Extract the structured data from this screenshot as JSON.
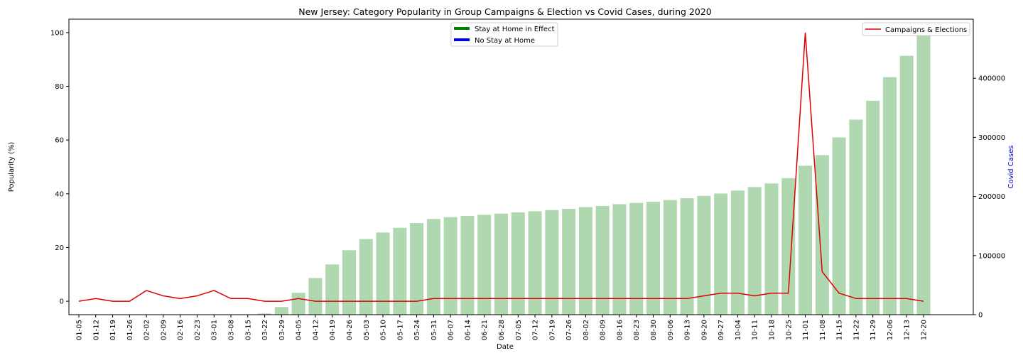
{
  "chart_data": {
    "type": "bar+line",
    "title": "New Jersey: Category Popularity in Group Campaigns & Election vs Covid Cases, during 2020",
    "xlabel": "Date",
    "ylabel_left": "Popularity (%)",
    "ylabel_right": "Covid Cases",
    "ylim_left": [
      -5,
      105
    ],
    "ylim_right": [
      0,
      500000
    ],
    "yticks_left": [
      "0",
      "20",
      "40",
      "60",
      "80",
      "100"
    ],
    "yticks_right": [
      "0",
      "100000",
      "200000",
      "300000",
      "400000"
    ],
    "grid": false,
    "categories": [
      "01-05",
      "01-12",
      "01-19",
      "01-26",
      "02-02",
      "02-09",
      "02-16",
      "02-23",
      "03-01",
      "03-08",
      "03-15",
      "03-22",
      "03-29",
      "04-05",
      "04-12",
      "04-19",
      "04-26",
      "05-03",
      "05-10",
      "05-17",
      "05-24",
      "05-31",
      "06-07",
      "06-14",
      "06-21",
      "06-28",
      "07-05",
      "07-12",
      "07-19",
      "07-26",
      "08-02",
      "08-09",
      "08-16",
      "08-23",
      "08-30",
      "09-06",
      "09-13",
      "09-20",
      "09-27",
      "10-04",
      "10-11",
      "10-18",
      "10-25",
      "11-01",
      "11-08",
      "11-15",
      "11-22",
      "11-29",
      "12-06",
      "12-13",
      "12-20"
    ],
    "series": [
      {
        "name": "Campaigns & Elections",
        "kind": "line",
        "axis": "left",
        "color": "#dd0000",
        "values": [
          0,
          1,
          0,
          0,
          4,
          2,
          1,
          2,
          4,
          1,
          1,
          0,
          0,
          1,
          0,
          0,
          0,
          0,
          0,
          0,
          0,
          1,
          1,
          1,
          1,
          1,
          1,
          1,
          1,
          1,
          1,
          1,
          1,
          1,
          1,
          1,
          1,
          2,
          3,
          3,
          2,
          3,
          3,
          100,
          11,
          3,
          1,
          1,
          1,
          1,
          0
        ]
      },
      {
        "kind": "bar",
        "axis": "right",
        "color": "#b0d8b0",
        "values": [
          0,
          0,
          0,
          0,
          0,
          0,
          0,
          0,
          0,
          0,
          0,
          2000,
          13000,
          37000,
          62000,
          85000,
          109000,
          128000,
          139000,
          147000,
          155000,
          162000,
          165000,
          167000,
          169000,
          171000,
          173000,
          175000,
          177000,
          179000,
          182000,
          184000,
          187000,
          189000,
          191000,
          194000,
          197000,
          201000,
          205000,
          210000,
          216000,
          222000,
          231000,
          252000,
          270000,
          300000,
          330000,
          362000,
          402000,
          438000,
          477000
        ]
      }
    ],
    "legends": {
      "upper_center": [
        {
          "label": "Stay at Home in Effect",
          "color": "#008000"
        },
        {
          "label": "No Stay at Home",
          "color": "#0000dd"
        }
      ],
      "upper_right": [
        {
          "label": "Campaigns & Elections",
          "color": "#dd0000"
        }
      ]
    }
  }
}
